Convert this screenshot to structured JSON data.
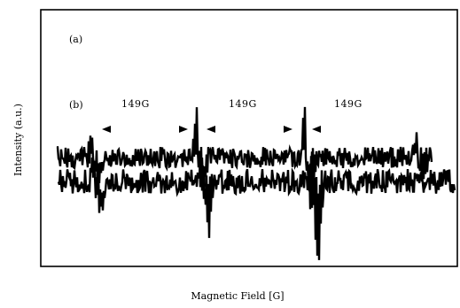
{
  "chart_data": {
    "type": "line",
    "title": "",
    "xlabel": "Magnetic Field [G]",
    "ylabel": "Intensity (a.u.)",
    "grid": false,
    "legend": "none",
    "frame_color": "#000000",
    "trace_color": "#000000",
    "panel_labels": [
      "(a)",
      "(b)"
    ],
    "annotations": [
      {
        "name": "spacing-1",
        "text": "149G",
        "from": 0,
        "to": 1
      },
      {
        "name": "spacing-2",
        "text": "149G",
        "from": 1,
        "to": 2
      },
      {
        "name": "spacing-3",
        "text": "149G",
        "from": 2,
        "to": 3
      }
    ],
    "series": [
      {
        "key": "trace-upper",
        "line_fraction_positions": [
          0.0,
          1.0
        ],
        "peaks": [
          0.1,
          0.4,
          0.68,
          0.91
        ]
      },
      {
        "key": "trace-lower",
        "line_fraction_positions": [
          0.04,
          1.0
        ],
        "peaks": [
          0.1,
          0.4,
          0.68
        ]
      }
    ]
  }
}
